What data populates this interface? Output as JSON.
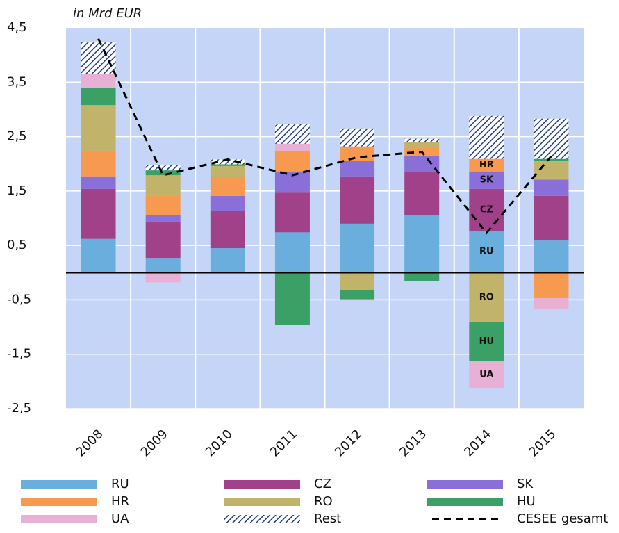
{
  "chart_data": {
    "type": "bar",
    "stacked": true,
    "y_label": "in Mrd EUR",
    "categories": [
      "2008",
      "2009",
      "2010",
      "2011",
      "2012",
      "2013",
      "2014",
      "2015"
    ],
    "ylim": [
      -2.5,
      4.5
    ],
    "yticks": [
      {
        "value": -2.5,
        "label": "-2,5"
      },
      {
        "value": -1.5,
        "label": "-1,5"
      },
      {
        "value": -0.5,
        "label": "-0,5"
      },
      {
        "value": 0.5,
        "label": "0,5"
      },
      {
        "value": 1.5,
        "label": "1,5"
      },
      {
        "value": 2.5,
        "label": "2,5"
      },
      {
        "value": 3.5,
        "label": "3,5"
      },
      {
        "value": 4.5,
        "label": "4,5"
      }
    ],
    "grid": true,
    "segment_labels_at": "2014",
    "series": [
      {
        "name": "RU",
        "color": "#6aaede",
        "values": [
          0.62,
          0.27,
          0.45,
          0.74,
          0.9,
          1.06,
          0.77,
          0.59
        ]
      },
      {
        "name": "CZ",
        "color": "#a0418a",
        "values": [
          0.92,
          0.67,
          0.68,
          0.73,
          0.87,
          0.8,
          0.77,
          0.82
        ]
      },
      {
        "name": "SK",
        "color": "#8a6fd8",
        "values": [
          0.23,
          0.12,
          0.28,
          0.39,
          0.28,
          0.29,
          0.32,
          0.3
        ]
      },
      {
        "name": "HR",
        "color": "#f79a50",
        "values": [
          0.47,
          0.35,
          0.35,
          0.38,
          0.27,
          0.14,
          0.23,
          -0.47
        ]
      },
      {
        "name": "RO",
        "color": "#c2b36a",
        "values": [
          0.84,
          0.38,
          0.2,
          0,
          -0.32,
          0.11,
          -0.91,
          0.34
        ]
      },
      {
        "name": "HU",
        "color": "#3aa065",
        "values": [
          0.32,
          0.09,
          0.03,
          -0.96,
          -0.17,
          -0.15,
          -0.72,
          0.04
        ]
      },
      {
        "name": "UA",
        "color": "#e8b0d4",
        "values": [
          0.25,
          -0.18,
          0,
          0.13,
          -0.02,
          0,
          -0.49,
          -0.2
        ]
      },
      {
        "name": "Rest",
        "color": "#1f3a80",
        "pattern": "hatch",
        "values": [
          0.58,
          0.09,
          0.09,
          0.36,
          0.33,
          0.06,
          0.79,
          0.74
        ]
      }
    ],
    "line": {
      "name": "CESEE gesamt",
      "color": "#000000",
      "dashed": true,
      "values": [
        4.3,
        1.79,
        2.08,
        1.79,
        2.12,
        2.22,
        0.73,
        2.14
      ]
    }
  }
}
